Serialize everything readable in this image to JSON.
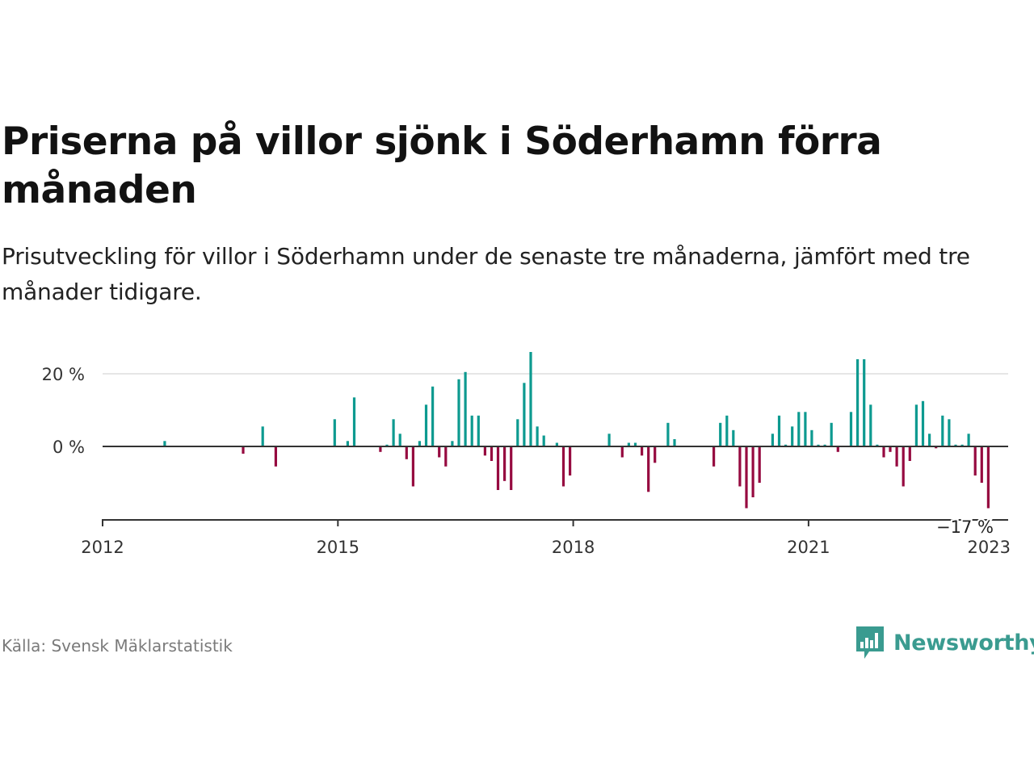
{
  "title": "Priserna på villor sjönk i Söderhamn förra månaden",
  "subtitle": "Prisutveckling för villor i Söderhamn under de senaste tre månaderna, jämfört med tre månader tidigare.",
  "source": "Källa: Svensk Mäklarstatistik",
  "brand": {
    "name": "Newsworthy",
    "logo_icon": "newsworthy-bar-chart-icon"
  },
  "colors": {
    "positive": "#0d9a90",
    "negative": "#960a40",
    "text": "#121212",
    "axis": "#555555",
    "grid": "#dddddd",
    "brand": "#3a9b90"
  },
  "chart_data": {
    "type": "bar",
    "xlabel": "",
    "ylabel": "",
    "x_ticks": [
      "2012",
      "2015",
      "2018",
      "2021",
      "2023"
    ],
    "y_ticks": [
      "20 %",
      "0 %"
    ],
    "ylim": [
      -20,
      27
    ],
    "annotation": "−17 %",
    "series": [
      {
        "values": [
          {
            "date": "2012-10",
            "value": 1.5
          },
          {
            "date": "2013-10",
            "value": -2
          },
          {
            "date": "2014-01",
            "value": 5.5
          },
          {
            "date": "2014-03",
            "value": -5.5
          },
          {
            "date": "2014-12",
            "value": 7.5
          },
          {
            "date": "2015-02",
            "value": 1.5
          },
          {
            "date": "2015-03",
            "value": 13.5
          },
          {
            "date": "2015-07",
            "value": -1.5
          },
          {
            "date": "2015-08",
            "value": 0.5
          },
          {
            "date": "2015-09",
            "value": 7.5
          },
          {
            "date": "2015-10",
            "value": 3.5
          },
          {
            "date": "2015-11",
            "value": -3.5
          },
          {
            "date": "2015-12",
            "value": -11
          },
          {
            "date": "2016-01",
            "value": 1.5
          },
          {
            "date": "2016-02",
            "value": 11.5
          },
          {
            "date": "2016-03",
            "value": 16.5
          },
          {
            "date": "2016-04",
            "value": -3
          },
          {
            "date": "2016-05",
            "value": -5.5
          },
          {
            "date": "2016-06",
            "value": 1.5
          },
          {
            "date": "2016-07",
            "value": 18.5
          },
          {
            "date": "2016-08",
            "value": 20.5
          },
          {
            "date": "2016-09",
            "value": 8.5
          },
          {
            "date": "2016-10",
            "value": 8.5
          },
          {
            "date": "2016-11",
            "value": -2.5
          },
          {
            "date": "2016-12",
            "value": -4
          },
          {
            "date": "2017-01",
            "value": -12
          },
          {
            "date": "2017-02",
            "value": -9.5
          },
          {
            "date": "2017-03",
            "value": -12
          },
          {
            "date": "2017-04",
            "value": 7.5
          },
          {
            "date": "2017-05",
            "value": 17.5
          },
          {
            "date": "2017-06",
            "value": 26
          },
          {
            "date": "2017-07",
            "value": 5.5
          },
          {
            "date": "2017-08",
            "value": 3
          },
          {
            "date": "2017-10",
            "value": 1
          },
          {
            "date": "2017-11",
            "value": -11
          },
          {
            "date": "2017-12",
            "value": -8
          },
          {
            "date": "2018-06",
            "value": 3.5
          },
          {
            "date": "2018-08",
            "value": -3
          },
          {
            "date": "2018-09",
            "value": 1
          },
          {
            "date": "2018-10",
            "value": 1
          },
          {
            "date": "2018-11",
            "value": -2.5
          },
          {
            "date": "2018-12",
            "value": -12.5
          },
          {
            "date": "2019-01",
            "value": -4.5
          },
          {
            "date": "2019-03",
            "value": 6.5
          },
          {
            "date": "2019-04",
            "value": 2
          },
          {
            "date": "2019-10",
            "value": -5.5
          },
          {
            "date": "2019-11",
            "value": 6.5
          },
          {
            "date": "2019-12",
            "value": 8.5
          },
          {
            "date": "2020-01",
            "value": 4.5
          },
          {
            "date": "2020-02",
            "value": -11
          },
          {
            "date": "2020-03",
            "value": -17
          },
          {
            "date": "2020-04",
            "value": -14
          },
          {
            "date": "2020-05",
            "value": -10
          },
          {
            "date": "2020-07",
            "value": 3.5
          },
          {
            "date": "2020-08",
            "value": 8.5
          },
          {
            "date": "2020-09",
            "value": 0.5
          },
          {
            "date": "2020-10",
            "value": 5.5
          },
          {
            "date": "2020-11",
            "value": 9.5
          },
          {
            "date": "2020-12",
            "value": 9.5
          },
          {
            "date": "2021-01",
            "value": 4.5
          },
          {
            "date": "2021-02",
            "value": 0.5
          },
          {
            "date": "2021-03",
            "value": 0.5
          },
          {
            "date": "2021-04",
            "value": 6.5
          },
          {
            "date": "2021-05",
            "value": -1.5
          },
          {
            "date": "2021-07",
            "value": 9.5
          },
          {
            "date": "2021-08",
            "value": 24
          },
          {
            "date": "2021-09",
            "value": 24
          },
          {
            "date": "2021-10",
            "value": 11.5
          },
          {
            "date": "2021-11",
            "value": 0.5
          },
          {
            "date": "2021-12",
            "value": -3
          },
          {
            "date": "2022-01",
            "value": -1.5
          },
          {
            "date": "2022-02",
            "value": -5.5
          },
          {
            "date": "2022-03",
            "value": -11
          },
          {
            "date": "2022-04",
            "value": -4
          },
          {
            "date": "2022-05",
            "value": 11.5
          },
          {
            "date": "2022-06",
            "value": 12.5
          },
          {
            "date": "2022-07",
            "value": 3.5
          },
          {
            "date": "2022-08",
            "value": -0.5
          },
          {
            "date": "2022-09",
            "value": 8.5
          },
          {
            "date": "2022-10",
            "value": 7.5
          },
          {
            "date": "2022-11",
            "value": 0.5
          },
          {
            "date": "2022-12",
            "value": 0.5
          },
          {
            "date": "2023-01",
            "value": 3.5
          },
          {
            "date": "2023-02",
            "value": -8
          },
          {
            "date": "2023-03",
            "value": -10
          },
          {
            "date": "2023-04",
            "value": -17
          }
        ]
      }
    ]
  }
}
